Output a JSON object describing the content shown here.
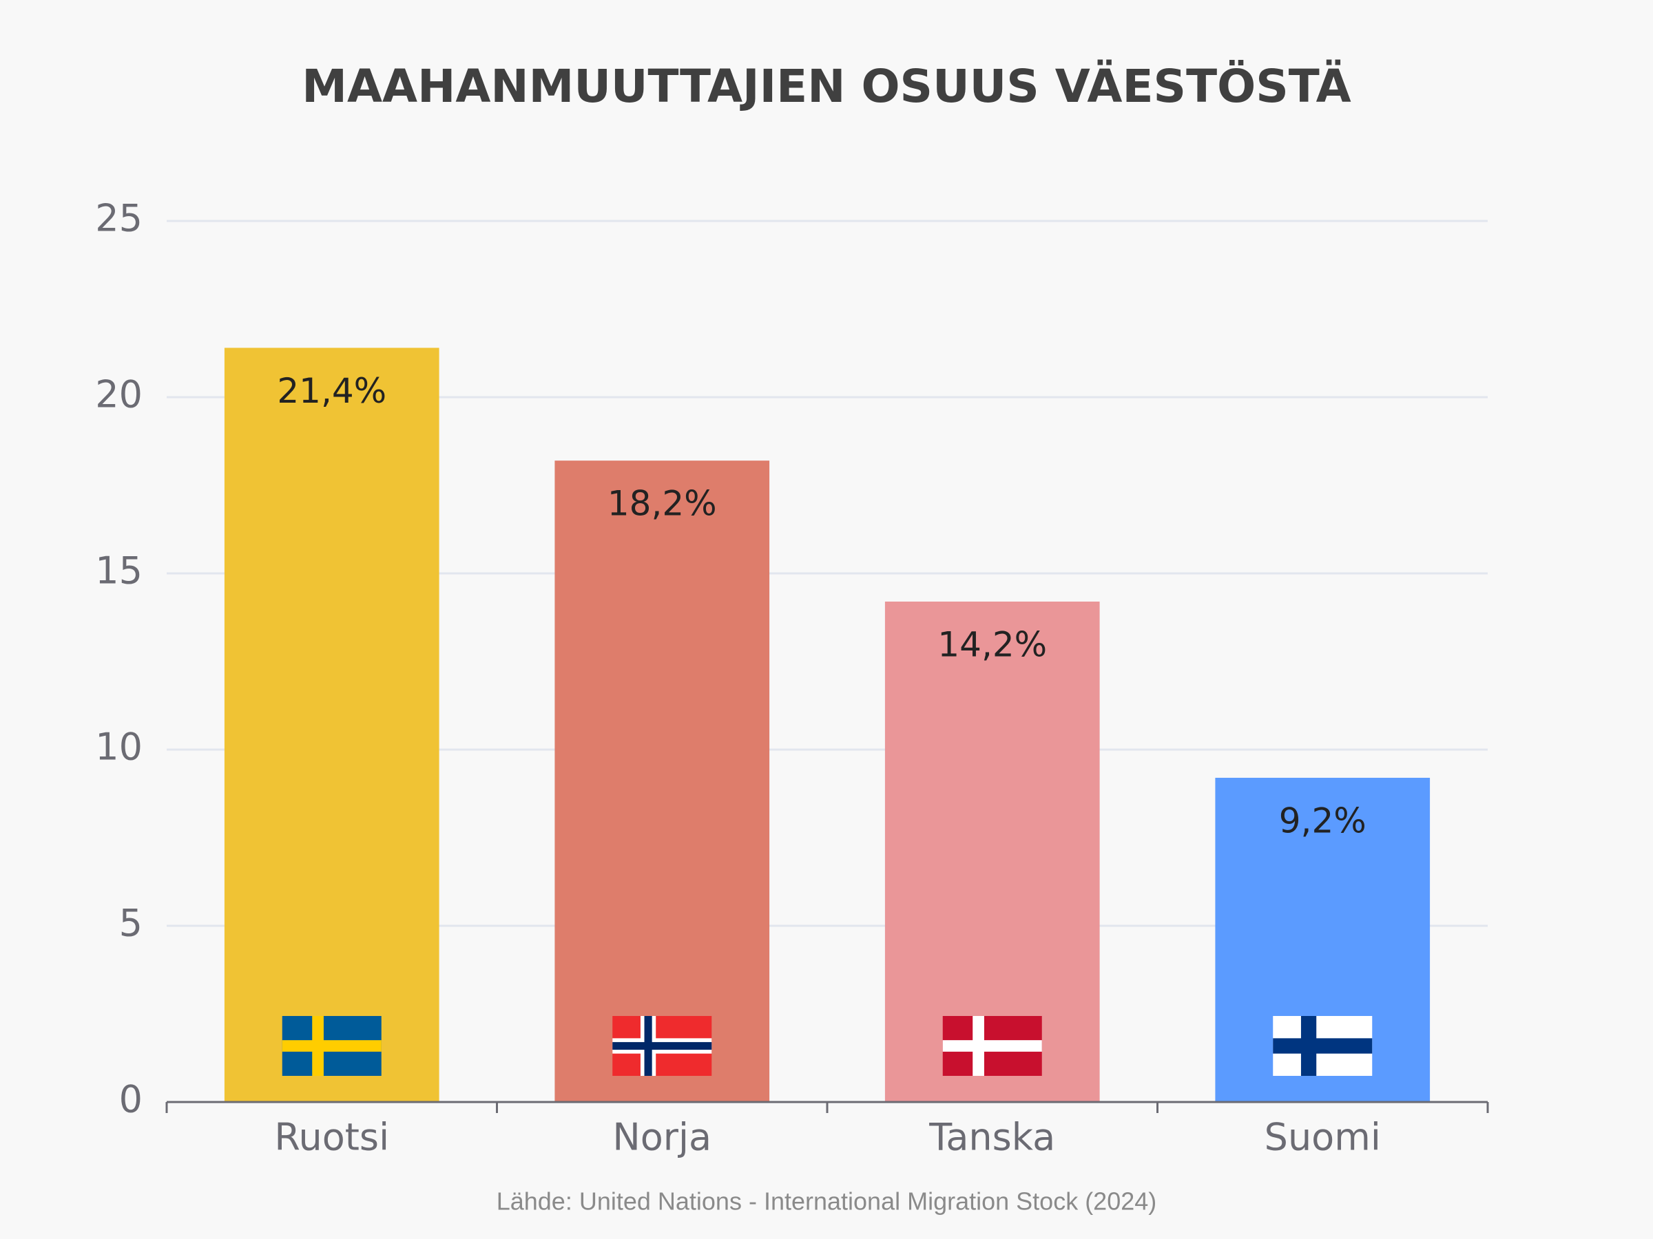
{
  "chart_data": {
    "type": "bar",
    "title": "MAAHANMUUTTAJIEN OSUUS VÄESTÖSTÄ",
    "categories": [
      "Ruotsi",
      "Norja",
      "Tanska",
      "Suomi"
    ],
    "values": [
      21.4,
      18.2,
      14.2,
      9.2
    ],
    "value_labels": [
      "21,4%",
      "18,2%",
      "14,2%",
      "9,2%"
    ],
    "colors": [
      "#f0c334",
      "#de7d6b",
      "#ea9698",
      "#5b9bff"
    ],
    "ylim": [
      0,
      25
    ],
    "yticks": [
      0,
      5,
      10,
      15,
      20,
      25
    ],
    "grid": true,
    "source": "Lähde: United Nations - International Migration Stock (2024)"
  }
}
